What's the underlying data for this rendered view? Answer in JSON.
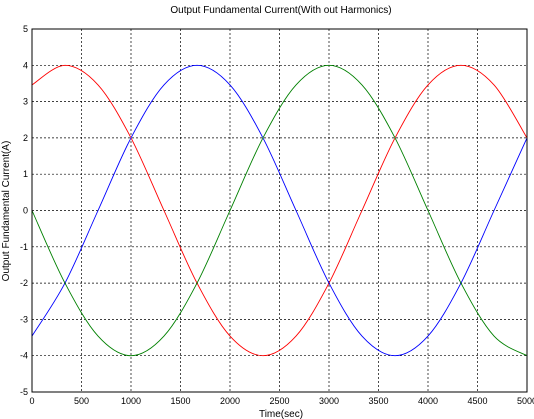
{
  "chart_data": {
    "type": "line",
    "title": "Output Fundamental Current(With out Harmonics)",
    "xlabel": "Time(sec)",
    "ylabel": "Output Fundamental Current(A)",
    "xlim": [
      0,
      5000
    ],
    "ylim": [
      -5,
      5
    ],
    "xticks": [
      0,
      500,
      1000,
      1500,
      2000,
      2500,
      3000,
      3500,
      4000,
      4500,
      5000
    ],
    "yticks": [
      -5,
      -4,
      -3,
      -2,
      -1,
      0,
      1,
      2,
      3,
      4,
      5
    ],
    "grid": true,
    "legend": "none",
    "series": [
      {
        "color": "#ff0000",
        "x": [
          0,
          333,
          667,
          1000,
          1333,
          1667,
          2000,
          2333,
          2667,
          3000,
          3333,
          3667,
          4000,
          4333,
          4667,
          5000
        ],
        "values": [
          3.46,
          4.0,
          3.46,
          2.0,
          0.0,
          -2.0,
          -3.46,
          -4.0,
          -3.46,
          -2.0,
          0.0,
          2.0,
          3.46,
          4.0,
          3.46,
          2.0
        ]
      },
      {
        "color": "#0000ff",
        "x": [
          0,
          333,
          667,
          1000,
          1333,
          1667,
          2000,
          2333,
          2667,
          3000,
          3333,
          3667,
          4000,
          4333,
          4667,
          5000
        ],
        "values": [
          -3.46,
          -2.0,
          0.0,
          2.0,
          3.46,
          4.0,
          3.46,
          2.0,
          0.0,
          -2.0,
          -3.46,
          -4.0,
          -3.46,
          -2.0,
          0.0,
          2.0
        ]
      },
      {
        "color": "#008000",
        "x": [
          0,
          333,
          667,
          1000,
          1333,
          1667,
          2000,
          2333,
          2667,
          3000,
          3333,
          3667,
          4000,
          4333,
          4667,
          5000
        ],
        "values": [
          0.0,
          -2.0,
          -3.46,
          -4.0,
          -3.46,
          -2.0,
          0.0,
          2.0,
          3.46,
          4.0,
          3.46,
          2.0,
          0.0,
          -2.0,
          -3.46,
          -4.0
        ]
      }
    ]
  }
}
